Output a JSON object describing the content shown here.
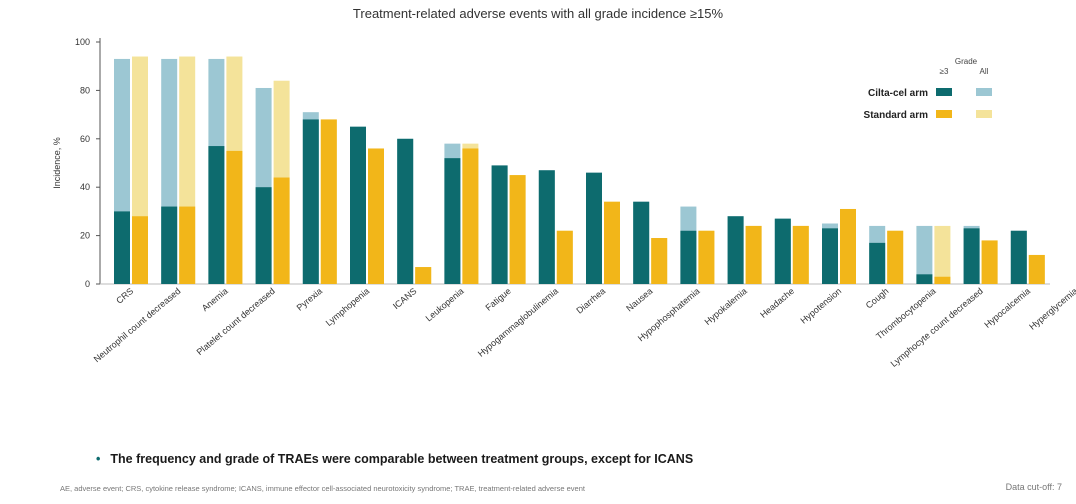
{
  "title": "Treatment-related adverse events with all grade incidence ≥15%",
  "bullet": "The frequency and grade of TRAEs were comparable between treatment groups, except for ICANS",
  "footnote": "AE, adverse event; CRS, cytokine release syndrome; ICANS, immune effector cell-associated neurotoxicity syndrome; TRAE, treatment-related adverse event",
  "slide_number": "Data cut-off: 7",
  "colors": {
    "teal_dark": "#0d6b6e",
    "teal_light": "#9cc7d3",
    "gold_dark": "#f2b619",
    "gold_light": "#f4e39a"
  },
  "chart_data": {
    "type": "bar",
    "title": "Treatment-related adverse events with all grade incidence ≥15%",
    "ylabel": "Incidence, %",
    "ylim": [
      0,
      100
    ],
    "yticks": [
      "0",
      "20",
      "40",
      "60",
      "80",
      "100"
    ],
    "legend": {
      "header": "Grade",
      "columns": [
        "≥3",
        "All"
      ],
      "series": [
        "Cilta-cel arm",
        "Standard arm"
      ]
    },
    "categories": [
      "CRS",
      "Neutrophil count decreased",
      "Anemia",
      "Platelet count decreased",
      "Pyrexia",
      "Lymphopenia",
      "ICANS",
      "Leukopenia",
      "Fatigue",
      "Hypogammaglobulinemia",
      "Diarrhea",
      "Nausea",
      "Hypophosphatemia",
      "Hypokalemia",
      "Headache",
      "Hypotension",
      "Cough",
      "Thrombocytopenia",
      "Lymphocyte count decreased",
      "Hypocalcemia",
      "Hyperglycemia"
    ],
    "series": [
      {
        "name": "Cilta-cel arm ≥3",
        "values": [
          30,
          32,
          57,
          40,
          68,
          65,
          60,
          52,
          49,
          47,
          46,
          34,
          22,
          28,
          27,
          23,
          17,
          4,
          23,
          22,
          0
        ]
      },
      {
        "name": "Cilta-cel arm All",
        "values": [
          93,
          93,
          93,
          81,
          71,
          65,
          60,
          58,
          49,
          47,
          46,
          34,
          32,
          28,
          27,
          25,
          24,
          24,
          24,
          22,
          0
        ]
      },
      {
        "name": "Standard arm ≥3",
        "values": [
          28,
          32,
          55,
          44,
          68,
          56,
          7,
          56,
          45,
          22,
          34,
          19,
          22,
          24,
          24,
          31,
          22,
          3,
          18,
          12,
          0
        ]
      },
      {
        "name": "Standard arm All",
        "values": [
          94,
          94,
          94,
          84,
          68,
          56,
          7,
          58,
          45,
          22,
          34,
          19,
          22,
          24,
          24,
          31,
          22,
          24,
          18,
          12,
          0
        ]
      }
    ]
  }
}
